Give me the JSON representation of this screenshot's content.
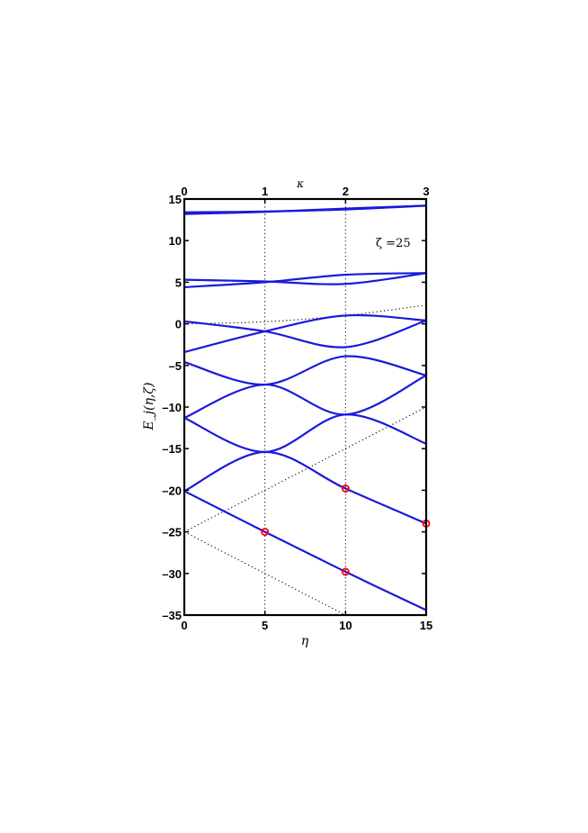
{
  "chart_data": {
    "type": "line",
    "title": "",
    "xlabel": "η",
    "ylabel": "E_j(η,ζ)",
    "top_xlabel": "κ",
    "annotation": "ζ =25",
    "xlim": [
      0,
      15
    ],
    "ylim": [
      -35,
      15
    ],
    "x_ticks": [
      0,
      5,
      10,
      15
    ],
    "y_ticks": [
      15,
      10,
      5,
      0,
      -5,
      -10,
      -15,
      -20,
      -25,
      -30,
      -35
    ],
    "top_ticks": [
      {
        "x": 0,
        "label": "0"
      },
      {
        "x": 5,
        "label": "1"
      },
      {
        "x": 10,
        "label": "2"
      },
      {
        "x": 15,
        "label": "3"
      }
    ],
    "grid": false,
    "colors": {
      "curve": "#1a1adb",
      "guide": "#000000",
      "marker": "#ff0000"
    },
    "vertical_guides_x": [
      5,
      10
    ],
    "series": [
      {
        "points": [
          [
            0,
            13.4
          ],
          [
            5,
            13.5
          ],
          [
            10,
            13.75
          ],
          [
            15,
            14.2
          ]
        ]
      },
      {
        "points": [
          [
            0,
            13.2
          ],
          [
            5,
            13.45
          ],
          [
            10,
            13.85
          ],
          [
            15,
            14.2
          ]
        ]
      },
      {
        "points": [
          [
            0,
            5.3
          ],
          [
            5,
            5.1
          ],
          [
            10,
            4.8
          ],
          [
            15,
            6.1
          ]
        ]
      },
      {
        "points": [
          [
            0,
            4.4
          ],
          [
            5,
            5.0
          ],
          [
            10,
            5.9
          ],
          [
            15,
            6.1
          ]
        ]
      },
      {
        "points": [
          [
            0,
            0.3
          ],
          [
            5,
            -0.9
          ],
          [
            10,
            -2.8
          ],
          [
            15,
            0.4
          ]
        ]
      },
      {
        "points": [
          [
            0,
            -3.4
          ],
          [
            5,
            -0.9
          ],
          [
            10,
            1.0
          ],
          [
            15,
            0.4
          ]
        ]
      },
      {
        "points": [
          [
            0,
            -4.6
          ],
          [
            5,
            -7.3
          ],
          [
            10,
            -3.9
          ],
          [
            15,
            -6.2
          ]
        ]
      },
      {
        "points": [
          [
            0,
            -11.3
          ],
          [
            5,
            -7.3
          ],
          [
            10,
            -10.9
          ],
          [
            15,
            -6.2
          ]
        ]
      },
      {
        "points": [
          [
            0,
            -11.3
          ],
          [
            5,
            -15.4
          ],
          [
            10,
            -10.9
          ],
          [
            15,
            -14.4
          ]
        ]
      },
      {
        "points": [
          [
            0,
            -20.1
          ],
          [
            5,
            -15.4
          ],
          [
            10,
            -19.8
          ],
          [
            15,
            -24.0
          ]
        ]
      },
      {
        "points": [
          [
            0,
            -20.1
          ],
          [
            5,
            -25.0
          ],
          [
            10,
            -29.8
          ],
          [
            15,
            -34.4
          ]
        ]
      }
    ],
    "dotted_lines": [
      {
        "points": [
          [
            0,
            -25.0
          ],
          [
            15,
            -10.0
          ]
        ]
      },
      {
        "points": [
          [
            0,
            -25.0
          ],
          [
            10,
            -35.0
          ]
        ]
      },
      {
        "points": [
          [
            0,
            0.0
          ],
          [
            5,
            0.25
          ],
          [
            10,
            1.0
          ],
          [
            15,
            2.25
          ]
        ]
      }
    ],
    "markers": [
      {
        "x": 5,
        "y": -25.0
      },
      {
        "x": 10,
        "y": -19.8
      },
      {
        "x": 10,
        "y": -29.8
      },
      {
        "x": 15,
        "y": -24.0
      }
    ]
  }
}
